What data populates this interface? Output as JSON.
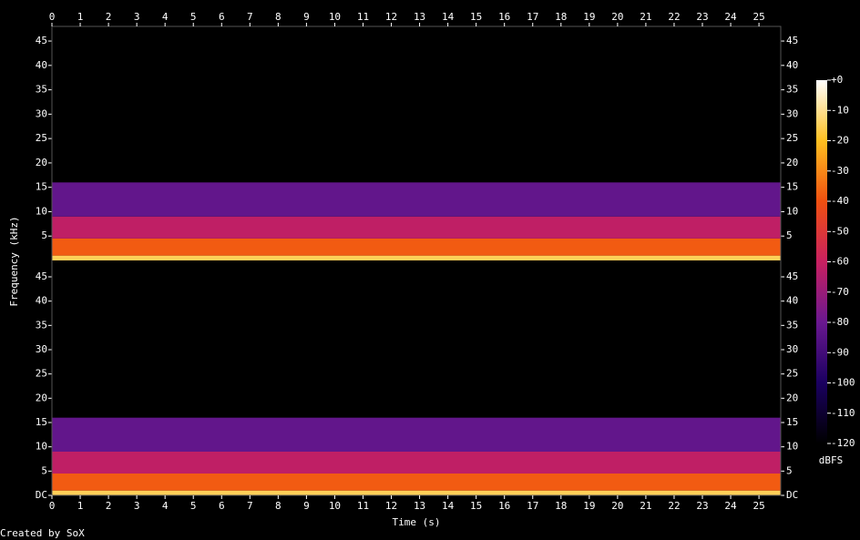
{
  "chart_data": {
    "type": "spectrogram",
    "x_label": "Time (s)",
    "y_label": "Frequency (kHz)",
    "xlim": [
      0,
      25.77
    ],
    "xticks": [
      0,
      1,
      2,
      3,
      4,
      5,
      6,
      7,
      8,
      9,
      10,
      11,
      12,
      13,
      14,
      15,
      16,
      17,
      18,
      19,
      20,
      21,
      22,
      23,
      24,
      25
    ],
    "channels": [
      {
        "ylim": [
          0,
          48
        ],
        "yticks": [
          5,
          10,
          15,
          20,
          25,
          30,
          35,
          40,
          45
        ],
        "bands": [
          {
            "low": 0,
            "high": 1,
            "dbfs": -15
          },
          {
            "low": 1,
            "high": 4.5,
            "dbfs": -38
          },
          {
            "low": 4.5,
            "high": 9,
            "dbfs": -62
          },
          {
            "low": 9,
            "high": 16,
            "dbfs": -82
          }
        ]
      },
      {
        "ylim": [
          0,
          48
        ],
        "yticks": [
          {
            "value": 0,
            "label": "DC"
          },
          5,
          10,
          15,
          20,
          25,
          30,
          35,
          40,
          45
        ],
        "bands": [
          {
            "low": 0,
            "high": 1,
            "dbfs": -15
          },
          {
            "low": 1,
            "high": 4.5,
            "dbfs": -38
          },
          {
            "low": 4.5,
            "high": 9,
            "dbfs": -62
          },
          {
            "low": 9,
            "high": 16,
            "dbfs": -82
          }
        ]
      }
    ],
    "colorbar": {
      "label": "dBFS",
      "clim": [
        -120,
        0
      ],
      "ticks": [
        {
          "value": 0,
          "label": "+0"
        },
        -10,
        -20,
        -30,
        -40,
        -50,
        -60,
        -70,
        -80,
        -90,
        -100,
        -110,
        -120
      ],
      "colormap": [
        "#000000",
        "#1a0060",
        "#6a1890",
        "#c82060",
        "#f05010",
        "#ffc020",
        "#ffffff"
      ]
    }
  },
  "credit": "Created by SoX"
}
